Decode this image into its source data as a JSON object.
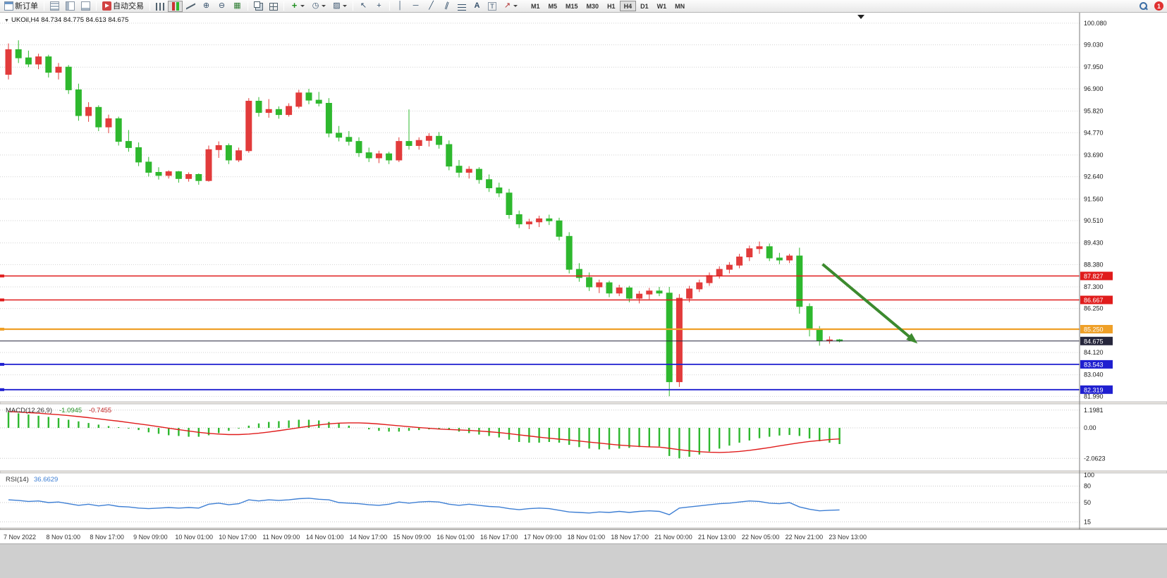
{
  "toolbar": {
    "new_order_label": "新订单",
    "autotrading_label": "自动交易",
    "notification_count": "1",
    "timeframes": [
      "M1",
      "M5",
      "M15",
      "M30",
      "H1",
      "H4",
      "D1",
      "W1",
      "MN"
    ],
    "active_timeframe": "H4"
  },
  "icons": {
    "zoom_in": "⊕",
    "zoom_out": "⊖",
    "grid": "▦",
    "periods": "◷",
    "templates": "▨",
    "indicators": "+",
    "cursor": "↖",
    "crosshair": "+",
    "vertical_line": "│",
    "horizontal_line": "─",
    "trendline": "╱",
    "channel": "∥",
    "arrows_tool": "↗",
    "collapse": "▼",
    "text_tool": "A",
    "label_tool": "T"
  },
  "chart_data": {
    "type": "candlestick",
    "symbol_title": "UKOil,H4",
    "ohlc_title": "84.734 84.775 84.613 84.675",
    "current_ohlc": {
      "open": 84.734,
      "high": 84.775,
      "low": 84.613,
      "close": 84.675
    },
    "up_color": "#e23b3b",
    "down_color": "#2eb82e",
    "grid_color": "#d2d2d2",
    "price_axis": {
      "labels": [
        100.08,
        99.03,
        97.95,
        96.9,
        95.82,
        94.77,
        93.69,
        92.64,
        91.56,
        90.51,
        89.43,
        88.38,
        87.3,
        86.25,
        84.12,
        83.04,
        81.99
      ]
    },
    "time_axis": {
      "labels": [
        "7 Nov 2022",
        "8 Nov 01:00",
        "8 Nov 17:00",
        "9 Nov 09:00",
        "10 Nov 01:00",
        "10 Nov 17:00",
        "11 Nov 09:00",
        "14 Nov 01:00",
        "14 Nov 17:00",
        "15 Nov 09:00",
        "16 Nov 01:00",
        "16 Nov 17:00",
        "17 Nov 09:00",
        "18 Nov 01:00",
        "18 Nov 17:00",
        "21 Nov 00:00",
        "21 Nov 13:00",
        "22 Nov 05:00",
        "22 Nov 21:00",
        "23 Nov 13:00"
      ]
    },
    "candles": [
      [
        97.6,
        99.1,
        97.35,
        98.8
      ],
      [
        98.8,
        99.25,
        98.15,
        98.4
      ],
      [
        98.4,
        98.75,
        97.95,
        98.1
      ],
      [
        98.1,
        98.6,
        97.85,
        98.45
      ],
      [
        98.45,
        98.55,
        97.45,
        97.7
      ],
      [
        97.7,
        98.15,
        97.35,
        97.95
      ],
      [
        97.95,
        98.05,
        96.65,
        96.85
      ],
      [
        96.85,
        97.15,
        95.35,
        95.6
      ],
      [
        95.6,
        96.25,
        95.3,
        96.0
      ],
      [
        96.0,
        96.1,
        94.85,
        95.05
      ],
      [
        95.05,
        95.65,
        94.75,
        95.45
      ],
      [
        95.45,
        95.55,
        94.15,
        94.35
      ],
      [
        94.35,
        94.9,
        93.85,
        94.05
      ],
      [
        94.05,
        94.3,
        93.15,
        93.35
      ],
      [
        93.35,
        93.6,
        92.65,
        92.85
      ],
      [
        92.85,
        93.1,
        92.5,
        92.7
      ],
      [
        92.7,
        92.95,
        92.55,
        92.88
      ],
      [
        92.88,
        92.92,
        92.35,
        92.55
      ],
      [
        92.55,
        92.85,
        92.4,
        92.75
      ],
      [
        92.75,
        92.8,
        92.25,
        92.45
      ],
      [
        92.45,
        94.15,
        92.4,
        93.95
      ],
      [
        93.95,
        94.35,
        93.55,
        94.15
      ],
      [
        94.15,
        94.25,
        93.25,
        93.45
      ],
      [
        93.45,
        94.05,
        93.35,
        93.9
      ],
      [
        93.9,
        96.45,
        93.8,
        96.3
      ],
      [
        96.3,
        96.5,
        95.55,
        95.75
      ],
      [
        95.75,
        96.4,
        95.5,
        95.9
      ],
      [
        95.9,
        96.05,
        95.45,
        95.65
      ],
      [
        95.65,
        96.2,
        95.55,
        96.05
      ],
      [
        96.05,
        96.85,
        95.95,
        96.7
      ],
      [
        96.7,
        96.9,
        96.15,
        96.35
      ],
      [
        96.35,
        96.75,
        96.05,
        96.2
      ],
      [
        96.2,
        96.45,
        94.55,
        94.75
      ],
      [
        94.75,
        95.1,
        94.35,
        94.55
      ],
      [
        94.55,
        94.85,
        94.15,
        94.35
      ],
      [
        94.35,
        94.55,
        93.6,
        93.8
      ],
      [
        93.8,
        94.05,
        93.35,
        93.55
      ],
      [
        93.55,
        93.9,
        93.3,
        93.75
      ],
      [
        93.75,
        93.85,
        93.25,
        93.45
      ],
      [
        93.45,
        94.55,
        93.35,
        94.35
      ],
      [
        94.35,
        95.9,
        93.95,
        94.15
      ],
      [
        94.15,
        94.55,
        93.95,
        94.4
      ],
      [
        94.4,
        94.75,
        94.1,
        94.6
      ],
      [
        94.6,
        94.8,
        94.0,
        94.2
      ],
      [
        94.2,
        94.4,
        92.95,
        93.15
      ],
      [
        93.15,
        93.45,
        92.6,
        92.85
      ],
      [
        92.85,
        93.15,
        92.55,
        93.0
      ],
      [
        93.0,
        93.1,
        92.3,
        92.5
      ],
      [
        92.5,
        92.75,
        91.9,
        92.1
      ],
      [
        92.1,
        92.35,
        91.65,
        91.85
      ],
      [
        91.85,
        92.05,
        90.6,
        90.8
      ],
      [
        90.8,
        91.0,
        90.15,
        90.35
      ],
      [
        90.35,
        90.6,
        90.1,
        90.45
      ],
      [
        90.45,
        90.75,
        90.2,
        90.6
      ],
      [
        90.6,
        90.8,
        90.3,
        90.5
      ],
      [
        90.5,
        90.65,
        89.55,
        89.75
      ],
      [
        89.75,
        89.95,
        87.95,
        88.15
      ],
      [
        88.15,
        88.45,
        87.55,
        87.75
      ],
      [
        87.75,
        88.0,
        87.1,
        87.3
      ],
      [
        87.3,
        87.65,
        87.0,
        87.5
      ],
      [
        87.5,
        87.6,
        86.8,
        87.0
      ],
      [
        87.0,
        87.4,
        86.85,
        87.25
      ],
      [
        87.25,
        87.35,
        86.55,
        86.75
      ],
      [
        86.75,
        87.1,
        86.5,
        86.95
      ],
      [
        86.95,
        87.25,
        86.7,
        87.1
      ],
      [
        87.1,
        87.3,
        86.85,
        87.0
      ],
      [
        87.0,
        87.3,
        82.0,
        82.7
      ],
      [
        82.7,
        86.95,
        82.45,
        86.75
      ],
      [
        86.75,
        87.35,
        86.55,
        87.2
      ],
      [
        87.2,
        87.65,
        87.05,
        87.5
      ],
      [
        87.5,
        88.0,
        87.35,
        87.85
      ],
      [
        87.85,
        88.3,
        87.7,
        88.15
      ],
      [
        88.15,
        88.5,
        87.95,
        88.35
      ],
      [
        88.35,
        88.9,
        88.2,
        88.75
      ],
      [
        88.75,
        89.3,
        88.55,
        89.15
      ],
      [
        89.15,
        89.5,
        88.9,
        89.25
      ],
      [
        89.25,
        89.4,
        88.55,
        88.7
      ],
      [
        88.7,
        88.95,
        88.4,
        88.6
      ],
      [
        88.6,
        88.9,
        88.45,
        88.8
      ],
      [
        88.8,
        89.2,
        86.0,
        86.35
      ],
      [
        86.35,
        86.5,
        84.9,
        85.25
      ],
      [
        85.25,
        85.4,
        84.45,
        84.7
      ],
      [
        84.7,
        84.9,
        84.55,
        84.73
      ],
      [
        84.734,
        84.775,
        84.613,
        84.675
      ]
    ],
    "hlines": [
      {
        "price": 87.827,
        "color": "#e01c1c",
        "width": 1.4
      },
      {
        "price": 86.667,
        "color": "#e01c1c",
        "width": 1.4
      },
      {
        "price": 85.25,
        "color": "#efa028",
        "width": 2.2
      },
      {
        "price": 83.543,
        "color": "#1f1fd0",
        "width": 1.8
      },
      {
        "price": 82.319,
        "color": "#1f1fd0",
        "width": 1.8
      }
    ],
    "bid_line": {
      "price": 84.675,
      "color": "#26263c",
      "width": 1
    },
    "trend_arrow": {
      "from_index": 81.3,
      "from_price": 88.4,
      "to_index": 90.3,
      "to_price": 84.75,
      "color": "#3c8a2e",
      "width": 4
    },
    "macd": {
      "name_label": "MACD(12,26,9)",
      "value_main": "-1.0945",
      "value_signal": "-0.7455",
      "axis_labels": [
        1.1981,
        0,
        -2.0623
      ],
      "histogram_color": "#2eb82e",
      "signal_color": "#e01c1c",
      "main": [
        1.05,
        0.98,
        0.9,
        0.82,
        0.74,
        0.66,
        0.55,
        0.44,
        0.33,
        0.22,
        0.12,
        0.05,
        -0.05,
        -0.15,
        -0.3,
        -0.4,
        -0.5,
        -0.55,
        -0.6,
        -0.6,
        -0.5,
        -0.35,
        -0.2,
        -0.05,
        0.15,
        0.3,
        0.4,
        0.45,
        0.5,
        0.55,
        0.55,
        0.5,
        0.4,
        0.3,
        0.15,
        0.0,
        -0.1,
        -0.2,
        -0.25,
        -0.25,
        -0.2,
        -0.15,
        -0.1,
        -0.1,
        -0.15,
        -0.25,
        -0.35,
        -0.45,
        -0.55,
        -0.65,
        -0.8,
        -0.95,
        -1.0,
        -1.0,
        -0.95,
        -1.0,
        -1.15,
        -1.3,
        -1.4,
        -1.45,
        -1.45,
        -1.4,
        -1.35,
        -1.3,
        -1.3,
        -1.25,
        -1.9,
        -2.06,
        -1.95,
        -1.8,
        -1.6,
        -1.4,
        -1.2,
        -1.0,
        -0.85,
        -0.7,
        -0.6,
        -0.52,
        -0.48,
        -0.55,
        -0.72,
        -0.9,
        -1.0,
        -1.0945
      ],
      "signal": [
        1.1,
        1.07,
        1.03,
        0.99,
        0.94,
        0.89,
        0.83,
        0.76,
        0.69,
        0.61,
        0.53,
        0.45,
        0.36,
        0.27,
        0.18,
        0.08,
        -0.02,
        -0.12,
        -0.21,
        -0.3,
        -0.37,
        -0.42,
        -0.45,
        -0.45,
        -0.42,
        -0.36,
        -0.28,
        -0.19,
        -0.09,
        0.01,
        0.11,
        0.2,
        0.27,
        0.32,
        0.34,
        0.34,
        0.31,
        0.26,
        0.2,
        0.14,
        0.08,
        0.02,
        -0.03,
        -0.08,
        -0.11,
        -0.14,
        -0.17,
        -0.21,
        -0.26,
        -0.32,
        -0.39,
        -0.47,
        -0.55,
        -0.63,
        -0.7,
        -0.76,
        -0.82,
        -0.89,
        -0.96,
        -1.03,
        -1.1,
        -1.16,
        -1.21,
        -1.25,
        -1.28,
        -1.3,
        -1.38,
        -1.47,
        -1.55,
        -1.61,
        -1.65,
        -1.66,
        -1.64,
        -1.59,
        -1.52,
        -1.43,
        -1.33,
        -1.22,
        -1.11,
        -1.01,
        -0.92,
        -0.85,
        -0.79,
        -0.7455
      ]
    },
    "rsi": {
      "name_label": "RSI(14)",
      "value": "36.6629",
      "axis_labels": [
        100,
        80,
        50,
        15
      ],
      "levels": [
        80,
        50,
        15
      ],
      "line_color": "#3e7fd4",
      "values": [
        55,
        54,
        52,
        53,
        50,
        51,
        48,
        45,
        47,
        44,
        46,
        43,
        42,
        40,
        39,
        40,
        41,
        40,
        41,
        40,
        47,
        49,
        46,
        48,
        55,
        53,
        55,
        54,
        55,
        57,
        58,
        56,
        55,
        50,
        49,
        48,
        46,
        45,
        47,
        51,
        49,
        51,
        52,
        51,
        47,
        45,
        47,
        45,
        43,
        42,
        39,
        37,
        39,
        40,
        39,
        36,
        33,
        32,
        31,
        33,
        32,
        34,
        32,
        34,
        35,
        34,
        28,
        40,
        42,
        44,
        46,
        48,
        49,
        51,
        53,
        52,
        49,
        48,
        50,
        42,
        38,
        35,
        36,
        36.66
      ]
    }
  }
}
